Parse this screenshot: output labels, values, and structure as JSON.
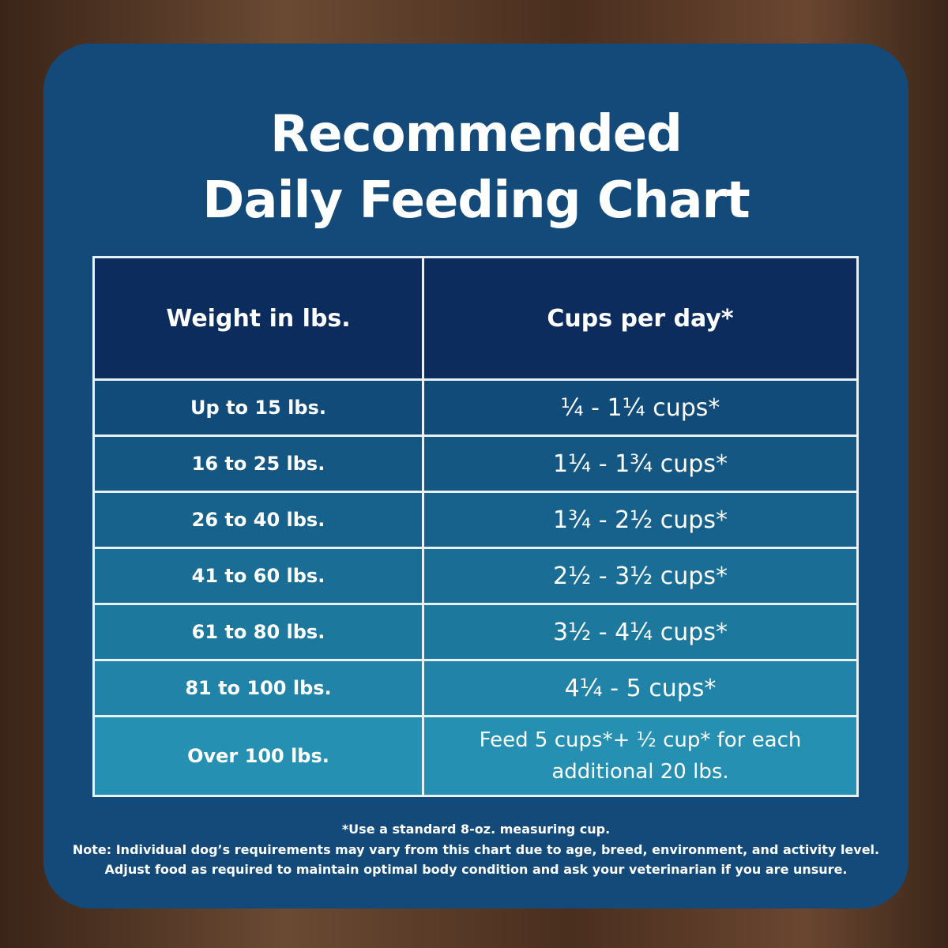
{
  "header": {
    "title_line1": "Recommended",
    "title_line2": "Daily Feeding Chart"
  },
  "table": {
    "columns": [
      "Weight in lbs.",
      "Cups per day*"
    ],
    "rows": [
      [
        "Up to 15 lbs.",
        "¼ - 1¼ cups*"
      ],
      [
        "16 to 25 lbs.",
        "1¼ - 1¾  cups*"
      ],
      [
        "26 to 40 lbs.",
        "1¾ - 2½ cups*"
      ],
      [
        "41 to 60 lbs.",
        "2½ - 3½ cups*"
      ],
      [
        "61 to 80 lbs.",
        "3½ - 4¼ cups*"
      ],
      [
        "81 to 100 lbs.",
        "4¼ - 5 cups*"
      ],
      [
        "Over 100 lbs.",
        "Feed 5 cups*+ ½ cup* for each additional 20 lbs."
      ]
    ]
  },
  "footnotes": [
    "*Use a standard 8-oz. measuring cup.",
    "Note: Individual dog’s requirements may vary from this chart due to age, breed, environment, and activity level.",
    "Adjust food as required to maintain optimal body condition and ask your veterinarian if you are unsure."
  ]
}
